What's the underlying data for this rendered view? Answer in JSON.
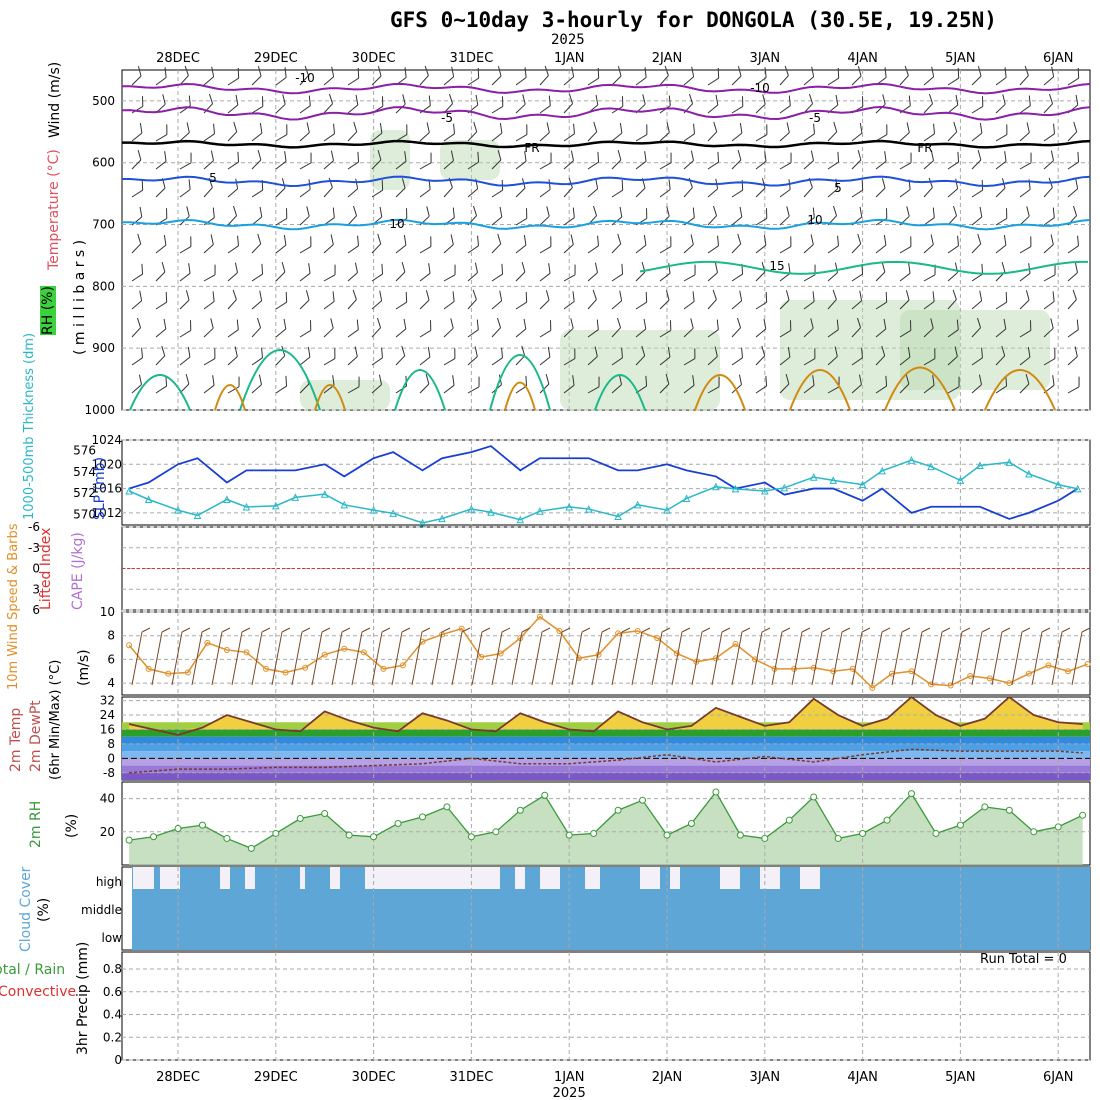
{
  "header": {
    "title": "GFS 0~10day 3-hourly for DONGOLA (30.5E, 19.25N)",
    "year": "2025"
  },
  "colors": {
    "slp": "#1a3fd0",
    "thickness": "#2ab8c8",
    "lifted": "#e03030",
    "wind10m": "#e0902a",
    "rh_fill": "#b6d6ae",
    "rh_line": "#3a9a3a",
    "cloud": "#5ea6d6",
    "temp_purple": "#8b1fa8",
    "temp_blue": "#1f50d8",
    "temp_cyan": "#1aa0e0",
    "temp_green": "#19b98a",
    "temp_orange": "#d08a10"
  },
  "x_axis": {
    "dates": [
      "28DEC",
      "29DEC",
      "30DEC",
      "31DEC",
      "1JAN",
      "2JAN",
      "3JAN",
      "4JAN",
      "5JAN",
      "6JAN"
    ],
    "year": "2025"
  },
  "panels": {
    "upper": {
      "labels": [
        "Wind (m/s)",
        "Temperature (°C)",
        "RH (%)",
        "( m i l l i b a r s )"
      ],
      "yticks": [
        "500",
        "600",
        "700",
        "800",
        "900",
        "1000"
      ],
      "contour_labels": [
        "-10",
        "-5",
        "FR",
        "5",
        "10",
        "15",
        "-10",
        "-5",
        "FR",
        "5",
        "10"
      ]
    },
    "slp": {
      "labels": [
        "1000-500mb Thickness (dm)",
        "SLP (mb)"
      ],
      "left_ticks": [
        "576",
        "574",
        "572",
        "570"
      ],
      "right_ticks": [
        "1024",
        "1020",
        "1016",
        "1012"
      ]
    },
    "cape": {
      "labels": [
        "Lifted Index",
        "CAPE (J/kg)"
      ],
      "ticks": [
        "-6",
        "-3",
        "0",
        "3",
        "6"
      ]
    },
    "wind10": {
      "labels": [
        "10m Wind Speed & Barbs",
        "(m/s)"
      ],
      "ticks": [
        "10",
        "8",
        "6",
        "4"
      ]
    },
    "temp": {
      "labels": [
        "2m Temp",
        "2m DewPt",
        "(6hr Min/Max) (°C)"
      ],
      "ticks": [
        "32",
        "24",
        "16",
        "8",
        "0",
        "-8"
      ]
    },
    "rh": {
      "labels": [
        "2m RH",
        "(%)"
      ],
      "ticks": [
        "40",
        "20"
      ]
    },
    "cloud": {
      "labels": [
        "Cloud Cover",
        "(%)"
      ],
      "ticks": [
        "high",
        "middle",
        "low"
      ]
    },
    "precip": {
      "labels": [
        "Total / Rain",
        "Convective",
        "3hr Precip (mm)"
      ],
      "ticks": [
        "0.8",
        "0.6",
        "0.4",
        "0.2",
        "0"
      ],
      "run_total": "Run Total = 0"
    }
  },
  "chart_data": [
    {
      "type": "line",
      "title": "SLP (mb)",
      "x_unit": "day from 28DEC 00Z",
      "series": [
        {
          "name": "SLP (mb)",
          "x": [
            -0.5,
            -0.3,
            0,
            0.2,
            0.5,
            0.7,
            1,
            1.2,
            1.5,
            1.7,
            2,
            2.2,
            2.5,
            2.7,
            3,
            3.2,
            3.5,
            3.7,
            4,
            4.2,
            4.5,
            4.7,
            5,
            5.2,
            5.5,
            5.7,
            6,
            6.2,
            6.5,
            6.7,
            7,
            7.2,
            7.5,
            7.7,
            8,
            8.2,
            8.5,
            8.7,
            9,
            9.2
          ],
          "values": [
            1016,
            1017,
            1020,
            1021,
            1017,
            1019,
            1019,
            1019,
            1020,
            1018,
            1021,
            1022,
            1019,
            1021,
            1022,
            1023,
            1019,
            1021,
            1021,
            1021,
            1019,
            1019,
            1020,
            1019,
            1018,
            1016,
            1017,
            1015,
            1016,
            1016,
            1014,
            1016,
            1012,
            1013,
            1013,
            1013,
            1011,
            1012,
            1014,
            1016
          ]
        }
      ],
      "ylim": [
        1010,
        1024
      ]
    },
    {
      "type": "line",
      "title": "1000-500mb Thickness (dm)",
      "series": [
        {
          "name": "Thickness (dm)",
          "x": [
            -0.5,
            -0.3,
            0,
            0.2,
            0.5,
            0.7,
            1,
            1.2,
            1.5,
            1.7,
            2,
            2.2,
            2.5,
            2.7,
            3,
            3.2,
            3.5,
            3.7,
            4,
            4.2,
            4.5,
            4.7,
            5,
            5.2,
            5.5,
            5.7,
            6,
            6.2,
            6.5,
            6.7,
            7,
            7.2,
            7.5,
            7.7,
            8,
            8.2,
            8.5,
            8.7,
            9,
            9.2
          ],
          "values": [
            572.2,
            571.4,
            570.4,
            569.9,
            571.4,
            570.7,
            570.8,
            571.6,
            571.9,
            570.9,
            570.4,
            570.1,
            569.2,
            569.6,
            570.5,
            570.2,
            569.5,
            570.3,
            570.7,
            570.5,
            569.8,
            570.9,
            570.4,
            571.5,
            572.6,
            572.4,
            572.2,
            572.5,
            573.5,
            573.2,
            572.8,
            574.1,
            575.1,
            574.5,
            573.2,
            574.6,
            574.9,
            573.8,
            572.8,
            572.4
          ]
        }
      ],
      "ylim": [
        569,
        577
      ]
    },
    {
      "type": "line",
      "title": "10m Wind Speed (m/s)",
      "series": [
        {
          "name": "10m Wind",
          "x": [
            -0.5,
            -0.3,
            -0.1,
            0.1,
            0.3,
            0.5,
            0.7,
            0.9,
            1.1,
            1.3,
            1.5,
            1.7,
            1.9,
            2.1,
            2.3,
            2.5,
            2.7,
            2.9,
            3.1,
            3.3,
            3.5,
            3.7,
            3.9,
            4.1,
            4.3,
            4.5,
            4.7,
            4.9,
            5.1,
            5.3,
            5.5,
            5.7,
            5.9,
            6.1,
            6.3,
            6.5,
            6.7,
            6.9,
            7.1,
            7.3,
            7.5,
            7.7,
            7.9,
            8.1,
            8.3,
            8.5,
            8.7,
            8.9,
            9.1,
            9.3
          ],
          "values": [
            7.2,
            5.2,
            4.8,
            4.9,
            7.4,
            6.8,
            6.6,
            5.2,
            4.9,
            5.3,
            6.4,
            6.9,
            6.6,
            5.2,
            5.5,
            7.5,
            8.1,
            8.6,
            6.2,
            6.5,
            7.8,
            9.6,
            8.4,
            6.1,
            6.4,
            8.2,
            8.4,
            7.8,
            6.5,
            5.8,
            6.1,
            7.3,
            6.0,
            5.2,
            5.2,
            5.3,
            5.0,
            5.2,
            3.6,
            4.8,
            5.0,
            3.9,
            3.8,
            4.6,
            4.4,
            4.0,
            4.8,
            5.5,
            5.0,
            5.6
          ]
        }
      ],
      "ylim": [
        3,
        10
      ]
    },
    {
      "type": "line",
      "title": "2m Temp (°C)",
      "series": [
        {
          "name": "2m Temp",
          "x": [
            -0.5,
            -0.25,
            0,
            0.25,
            0.5,
            0.75,
            1,
            1.25,
            1.5,
            1.75,
            2,
            2.25,
            2.5,
            2.75,
            3,
            3.25,
            3.5,
            3.75,
            4,
            4.25,
            4.5,
            4.75,
            5,
            5.25,
            5.5,
            5.75,
            6,
            6.25,
            6.5,
            6.75,
            7,
            7.25,
            7.5,
            7.75,
            8,
            8.25,
            8.5,
            8.75,
            9,
            9.25
          ],
          "values": [
            19,
            16,
            13,
            17,
            24,
            20,
            16,
            15,
            26,
            21,
            17,
            15,
            25,
            21,
            16,
            15,
            25,
            20,
            16,
            15,
            26,
            20,
            16,
            18,
            28,
            23,
            18,
            20,
            33,
            24,
            18,
            22,
            34,
            24,
            18,
            22,
            34,
            24,
            20,
            19
          ]
        },
        {
          "name": "2m DewPt",
          "x": [
            -0.5,
            0,
            0.5,
            1,
            1.5,
            2,
            2.5,
            3,
            3.5,
            4,
            4.5,
            5,
            5.5,
            6,
            6.5,
            7,
            7.5,
            8,
            8.5,
            9,
            9.25
          ],
          "values": [
            -8,
            -6,
            -6,
            -5,
            -5,
            -4,
            -3,
            0,
            -3,
            -3,
            -1,
            2,
            -2,
            1,
            -2,
            2,
            5,
            4,
            4,
            4,
            3
          ]
        }
      ],
      "ylim": [
        -12,
        34
      ]
    },
    {
      "type": "line",
      "title": "2m RH (%)",
      "series": [
        {
          "name": "2m RH",
          "x": [
            -0.5,
            -0.25,
            0,
            0.25,
            0.5,
            0.75,
            1,
            1.25,
            1.5,
            1.75,
            2,
            2.25,
            2.5,
            2.75,
            3,
            3.25,
            3.5,
            3.75,
            4,
            4.25,
            4.5,
            4.75,
            5,
            5.25,
            5.5,
            5.75,
            6,
            6.25,
            6.5,
            6.75,
            7,
            7.25,
            7.5,
            7.75,
            8,
            8.25,
            8.5,
            8.75,
            9,
            9.25
          ],
          "values": [
            15,
            17,
            22,
            24,
            16,
            10,
            19,
            28,
            31,
            18,
            17,
            25,
            29,
            35,
            17,
            20,
            33,
            42,
            18,
            19,
            33,
            39,
            18,
            25,
            44,
            18,
            16,
            27,
            41,
            16,
            19,
            27,
            43,
            19,
            24,
            35,
            33,
            20,
            23,
            30
          ]
        }
      ],
      "ylim": [
        0,
        50
      ]
    },
    {
      "type": "bar",
      "title": "Cloud Cover (%)",
      "categories": [
        "high",
        "middle",
        "low"
      ],
      "series": [
        {
          "name": "high",
          "values": [
            60,
            60,
            60
          ]
        }
      ]
    },
    {
      "type": "bar",
      "title": "3hr Precip (mm)",
      "series": [
        {
          "name": "Total / Rain",
          "values": [
            0
          ]
        },
        {
          "name": "Convective",
          "values": [
            0
          ]
        }
      ],
      "ylim": [
        0,
        1
      ]
    }
  ]
}
